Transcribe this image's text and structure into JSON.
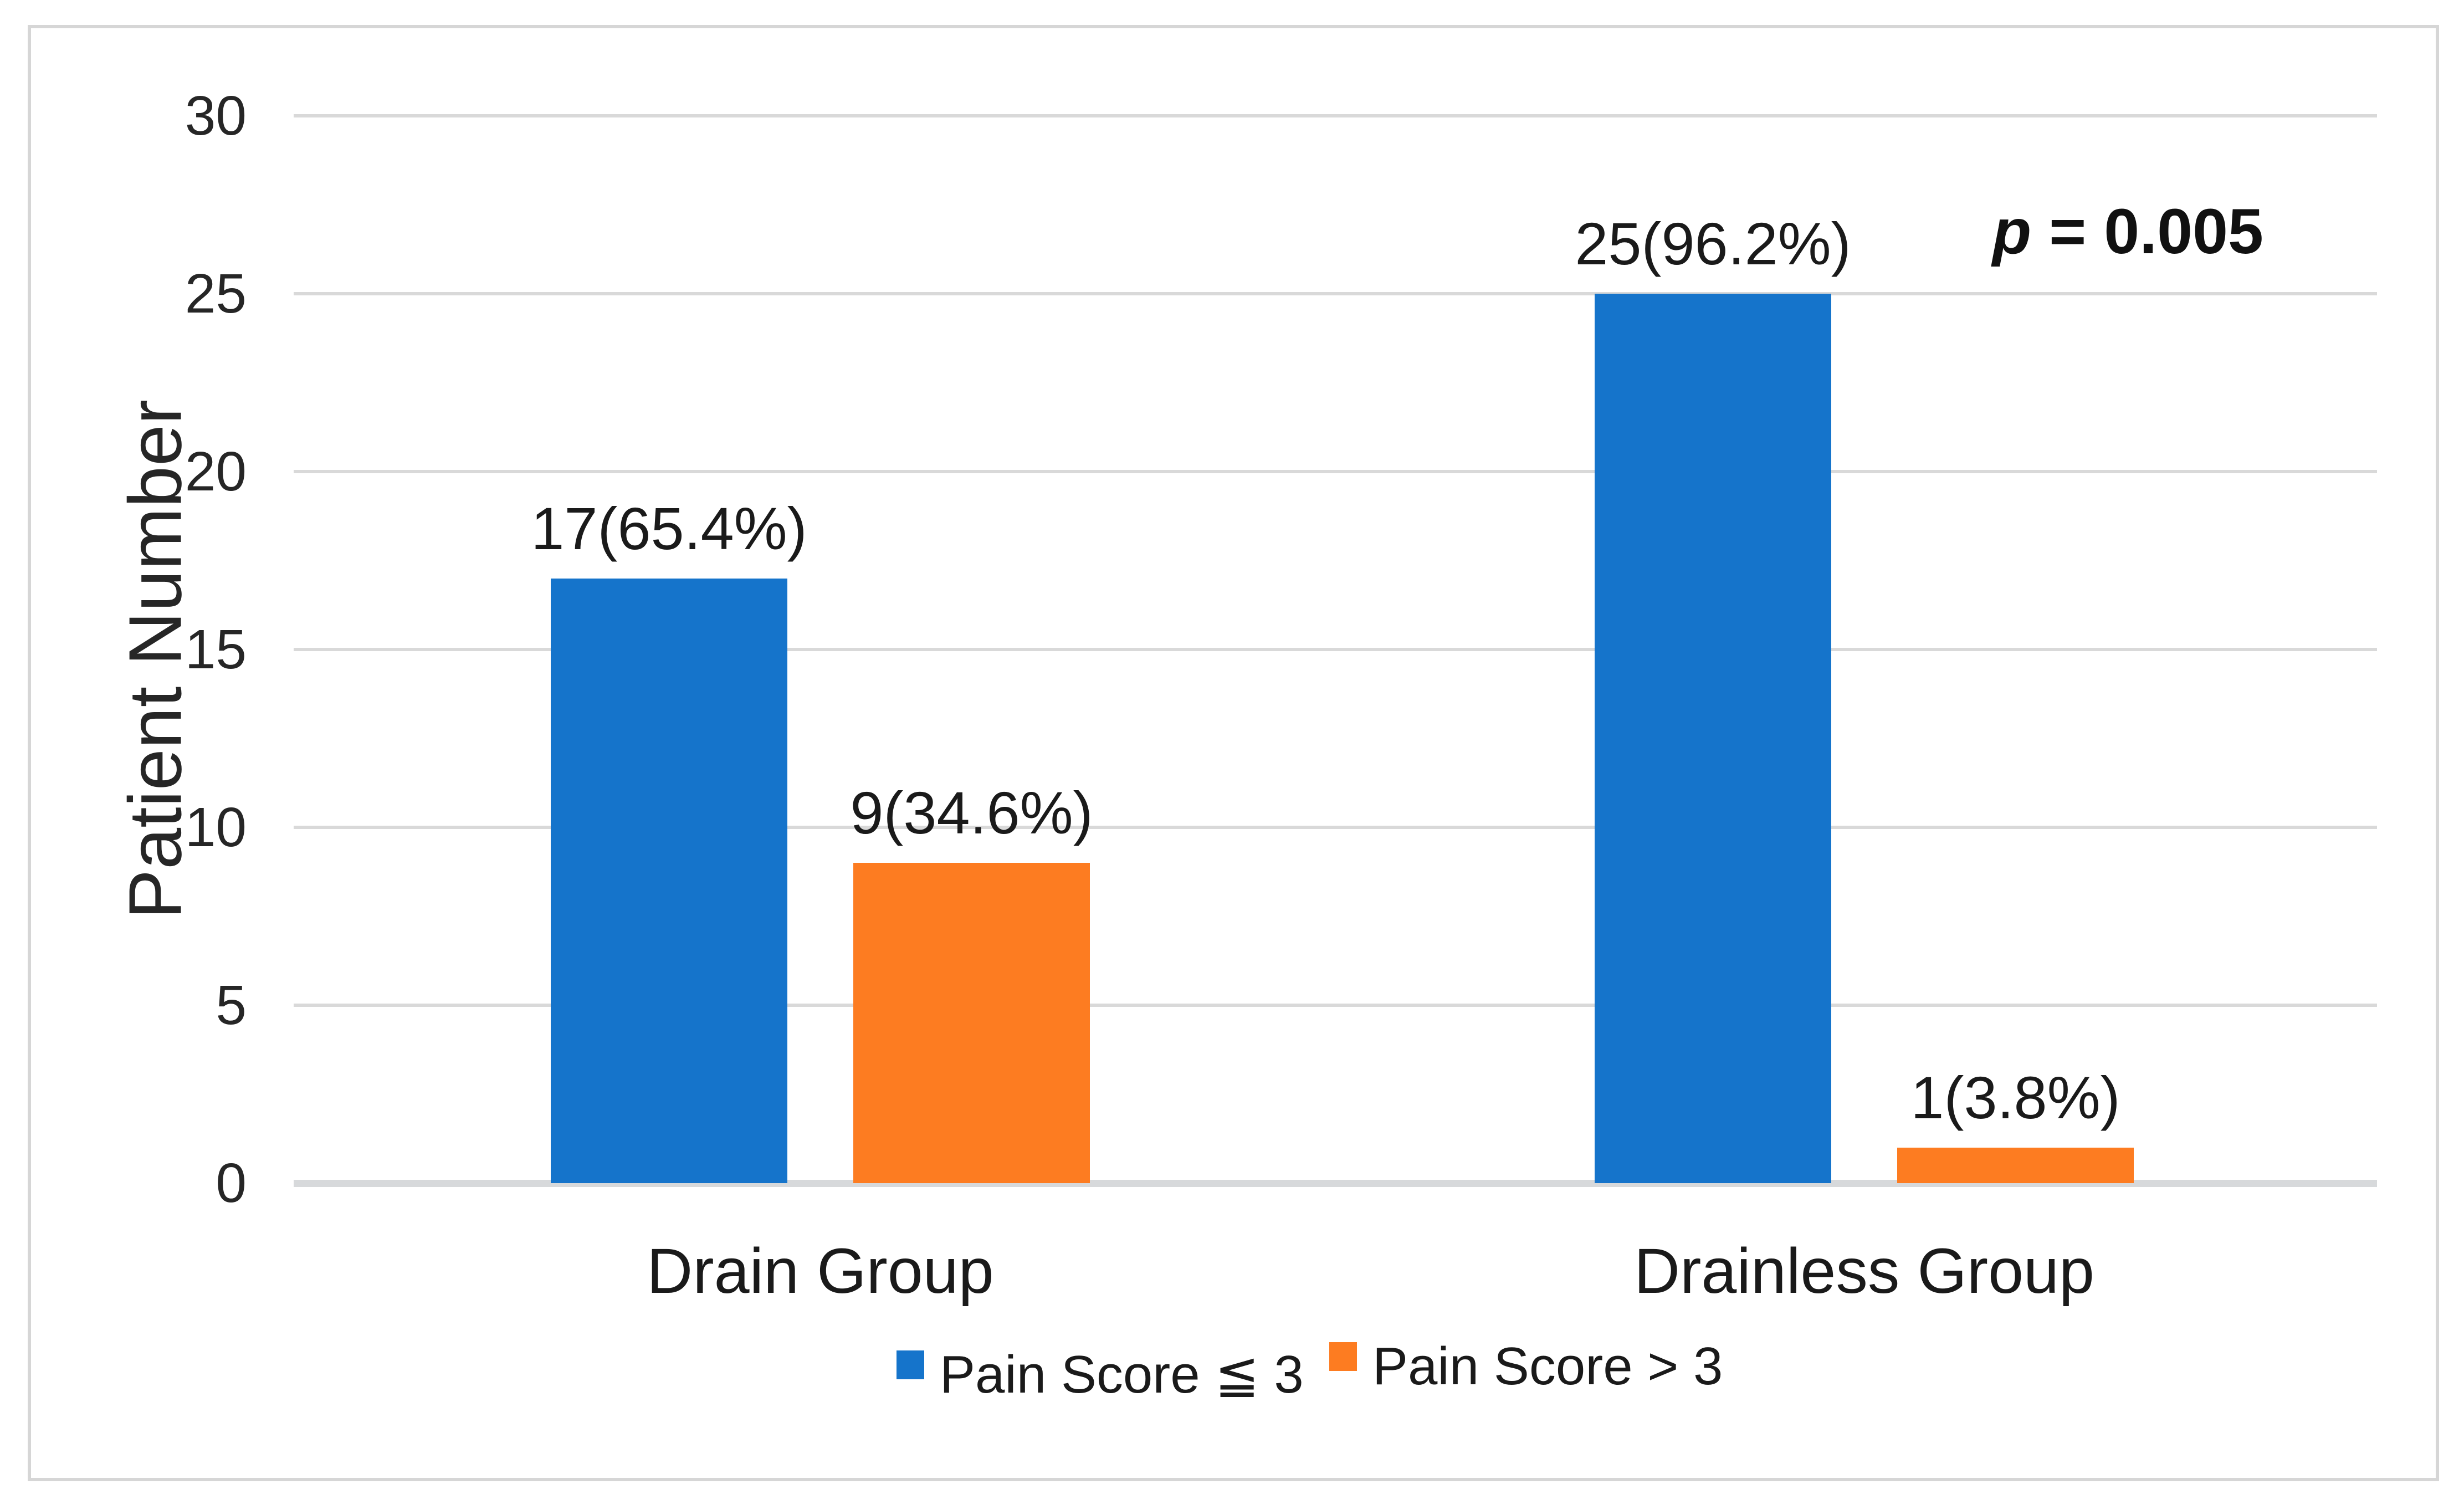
{
  "chart_data": {
    "type": "bar",
    "title": "",
    "xlabel": "",
    "ylabel": "Patient Number",
    "ylim": [
      0,
      30
    ],
    "yticks": [
      0,
      5,
      10,
      15,
      20,
      25,
      30
    ],
    "grid": true,
    "legend_position": "bottom",
    "categories": [
      "Drain Group",
      "Drainless Group"
    ],
    "series": [
      {
        "name": "Pain Score ≦ 3",
        "color": "#1574CB",
        "values": [
          17,
          25
        ],
        "data_labels": [
          "17(65.4%)",
          "25(96.2%)"
        ]
      },
      {
        "name": "Pain Score > 3",
        "color": "#FD7C21",
        "values": [
          9,
          1
        ],
        "data_labels": [
          "9(34.6%)",
          "1(3.8%)"
        ]
      }
    ],
    "annotation": {
      "p_symbol": "p",
      "rest": " = 0.005"
    }
  },
  "colors": {
    "blue_series": "#1574CB",
    "orange_series": "#FD7C21",
    "gridline": "#D9D9D9",
    "frame_border": "#D6D6D6",
    "text": "#1A1A1A"
  }
}
